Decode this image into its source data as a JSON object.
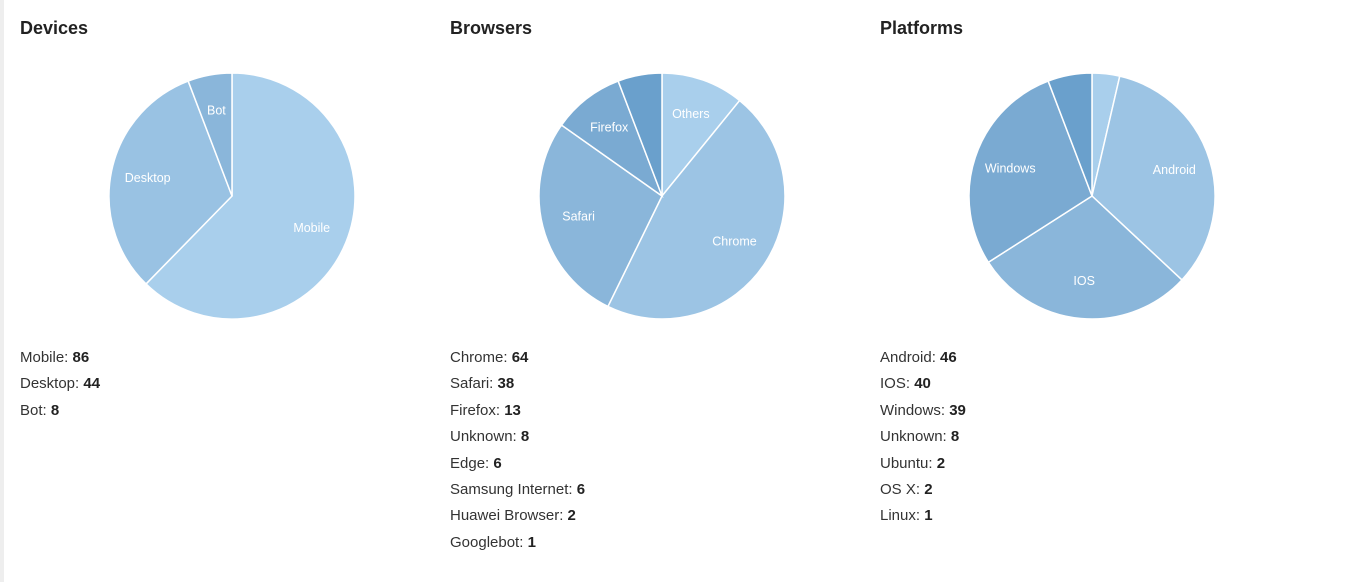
{
  "chart_data": [
    {
      "type": "pie",
      "title": "Devices",
      "categories": [
        "Mobile",
        "Desktop",
        "Bot"
      ],
      "values": [
        86,
        44,
        8
      ],
      "colors": [
        "#a9cfec",
        "#99c2e3",
        "#8ab6da"
      ]
    },
    {
      "type": "pie",
      "title": "Browsers",
      "categories": [
        "Others",
        "Chrome",
        "Safari",
        "Firefox",
        null
      ],
      "values": [
        15,
        64,
        38,
        13,
        8
      ],
      "colors": [
        "#a9cfec",
        "#9cc4e4",
        "#8ab6da",
        "#7aaad2",
        "#6aa0cc"
      ]
    },
    {
      "type": "pie",
      "title": "Platforms",
      "categories": [
        null,
        "Android",
        "IOS",
        "Windows",
        null
      ],
      "values": [
        5,
        46,
        40,
        39,
        8
      ],
      "colors": [
        "#a9cfec",
        "#9cc4e4",
        "#8ab6da",
        "#7aaad2",
        "#6aa0cc"
      ]
    }
  ],
  "lists": [
    [
      {
        "label": "Mobile:",
        "value": 86
      },
      {
        "label": "Desktop:",
        "value": 44
      },
      {
        "label": "Bot:",
        "value": 8
      }
    ],
    [
      {
        "label": "Chrome:",
        "value": 64
      },
      {
        "label": "Safari:",
        "value": 38
      },
      {
        "label": "Firefox:",
        "value": 13
      },
      {
        "label": "Unknown:",
        "value": 8
      },
      {
        "label": "Edge:",
        "value": 6
      },
      {
        "label": "Samsung Internet:",
        "value": 6
      },
      {
        "label": "Huawei Browser:",
        "value": 2
      },
      {
        "label": "Googlebot:",
        "value": 1
      }
    ],
    [
      {
        "label": "Android:",
        "value": 46
      },
      {
        "label": "IOS:",
        "value": 40
      },
      {
        "label": "Windows:",
        "value": 39
      },
      {
        "label": "Unknown:",
        "value": 8
      },
      {
        "label": "Ubuntu:",
        "value": 2
      },
      {
        "label": "OS X:",
        "value": 2
      },
      {
        "label": "Linux:",
        "value": 1
      }
    ]
  ]
}
